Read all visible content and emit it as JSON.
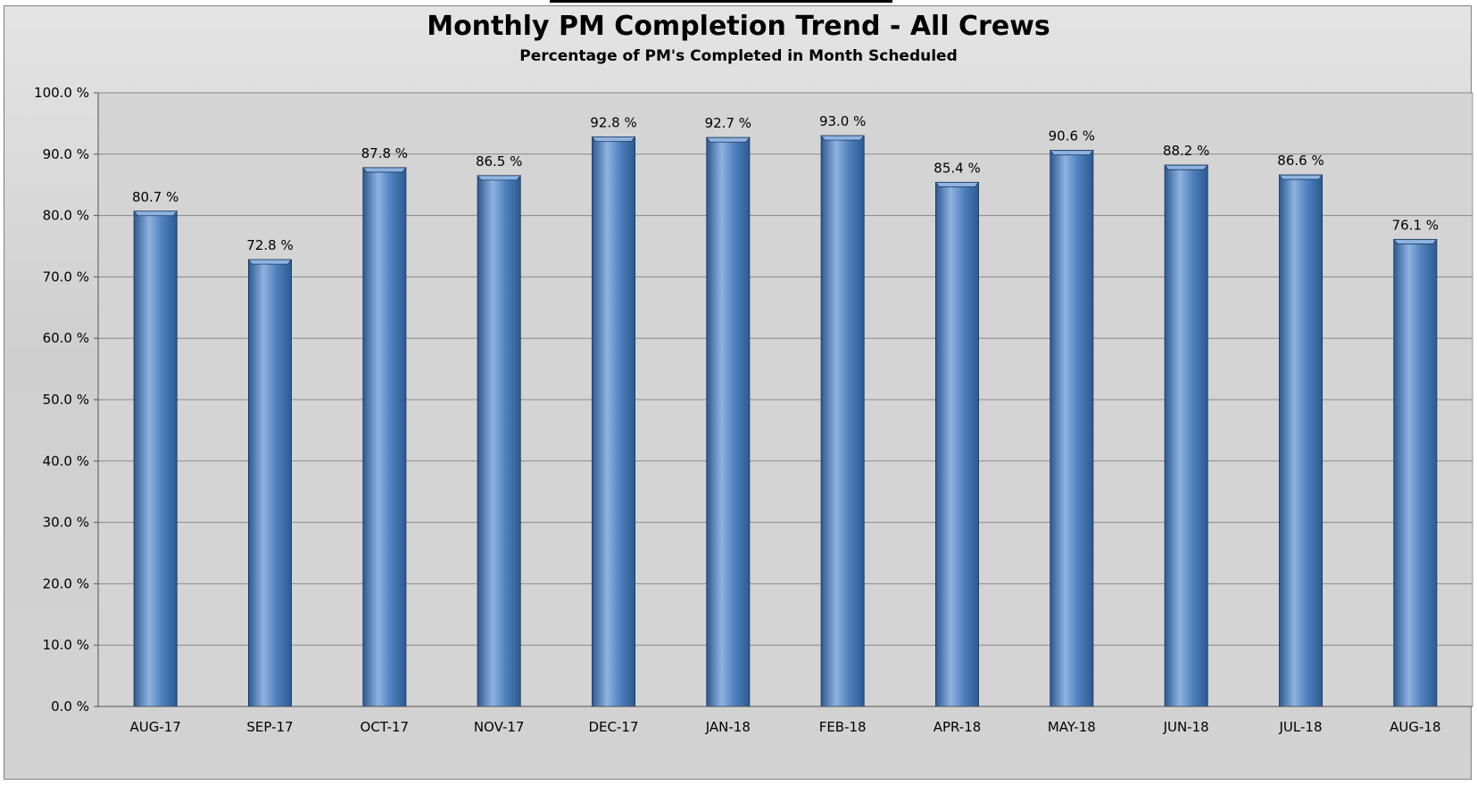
{
  "chart_data": {
    "type": "bar",
    "title": "Monthly PM Completion Trend - All Crews",
    "subtitle": "Percentage of PM's Completed in Month Scheduled",
    "xlabel": "",
    "ylabel": "",
    "categories": [
      "AUG-17",
      "SEP-17",
      "OCT-17",
      "NOV-17",
      "DEC-17",
      "JAN-18",
      "FEB-18",
      "APR-18",
      "MAY-18",
      "JUN-18",
      "JUL-18",
      "AUG-18"
    ],
    "values": [
      80.7,
      72.8,
      87.8,
      86.5,
      92.8,
      92.7,
      93.0,
      85.4,
      90.6,
      88.2,
      86.6,
      76.1
    ],
    "value_labels": [
      "80.7 %",
      "72.8 %",
      "87.8 %",
      "86.5 %",
      "92.8 %",
      "92.7 %",
      "93.0 %",
      "85.4 %",
      "90.6 %",
      "88.2 %",
      "86.6 %",
      "76.1 %"
    ],
    "yticks": [
      "0.0 %",
      "10.0 %",
      "20.0 %",
      "30.0 %",
      "40.0 %",
      "50.0 %",
      "60.0 %",
      "70.0 %",
      "80.0 %",
      "90.0 %",
      "100.0 %"
    ],
    "ylim": [
      0,
      100
    ],
    "grid": true,
    "legend": "none",
    "colors": {
      "bar": "#4f81bd",
      "bar_dark": "#2c5a93",
      "bar_light": "#8fb3e0",
      "plot_background": "#d4d4d4",
      "gridline": "#8a8a8a"
    }
  }
}
